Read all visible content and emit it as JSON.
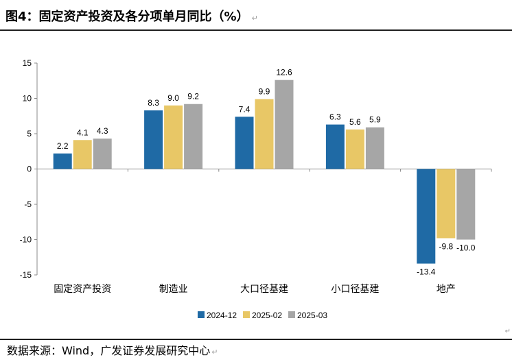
{
  "header": {
    "title": "图4：固定资产投资及各分项单月同比（%）",
    "title_mark": "↵"
  },
  "footer": {
    "source": "数据来源：Wind，广发证券发展研究中心",
    "source_mark": "↵",
    "corner_mark": "↵"
  },
  "colors": {
    "2024-12": "#1f6aa5",
    "2025-02": "#e8c766",
    "2025-03": "#a6a6a6"
  },
  "chart_data": {
    "type": "bar",
    "title": "",
    "xlabel": "",
    "ylabel": "",
    "ylim": [
      -15,
      15
    ],
    "yticks": [
      15,
      10,
      5,
      0,
      -5,
      -10,
      -15
    ],
    "categories": [
      "固定资产投资",
      "制造业",
      "大口径基建",
      "小口径基建",
      "地产"
    ],
    "series": [
      {
        "name": "2024-12",
        "values": [
          2.2,
          8.3,
          7.4,
          6.3,
          -13.4
        ]
      },
      {
        "name": "2025-02",
        "values": [
          4.1,
          9.0,
          9.9,
          5.6,
          -9.8
        ]
      },
      {
        "name": "2025-03",
        "values": [
          4.3,
          9.2,
          12.6,
          5.9,
          -10.0
        ]
      }
    ],
    "legend_position": "bottom",
    "grid": false
  }
}
